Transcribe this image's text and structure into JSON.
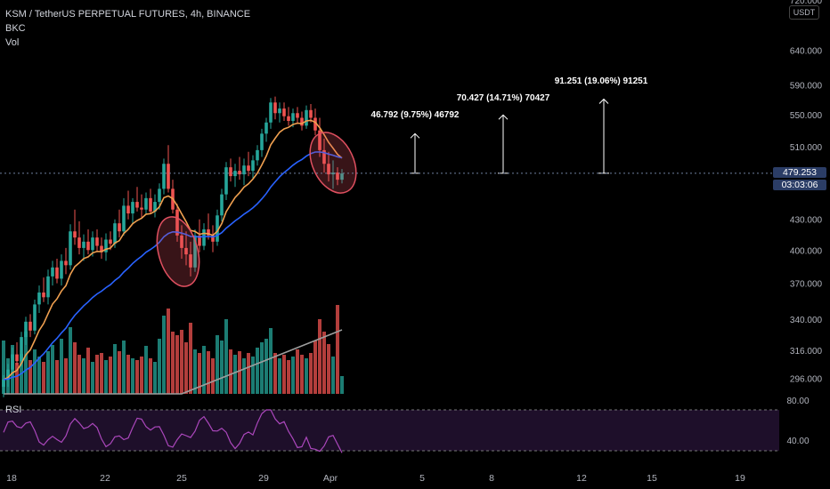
{
  "header": {
    "symbol_line": "KSM / TetherUS PERPETUAL FUTURES, 4h, BINANCE",
    "indicator_1": "BKC",
    "indicator_2": "Vol",
    "rsi_label": "RSI",
    "currency": "USDT"
  },
  "current_price": {
    "price": "479.253",
    "countdown": "03:03:06"
  },
  "colors": {
    "up": "#26a69a",
    "down": "#ef5350",
    "ema_short": "#f0a050",
    "ema_long": "#2962ff",
    "vol_ma": "#9e9e9e",
    "rsi": "#ab47bc",
    "rsi_band": "#1e0f2a",
    "ellipse": "#e05060",
    "badge": "#2b3d66"
  },
  "chart_data": {
    "type": "candlestick",
    "title": "KSM / TetherUS PERPETUAL FUTURES, 4h, BINANCE",
    "price_axis_ticks": [
      "720.000",
      "640.000",
      "590.000",
      "550.000",
      "510.000",
      "430.000",
      "400.000",
      "370.000",
      "340.000",
      "316.000",
      "296.000"
    ],
    "time_axis_ticks": [
      "18",
      "22",
      "25",
      "29",
      "Apr",
      "5",
      "8",
      "12",
      "15",
      "19"
    ],
    "rsi_axis_ticks": [
      "80.00",
      "40.00"
    ],
    "log_scale": true,
    "ohlc": [
      [
        290,
        298,
        283,
        295
      ],
      [
        295,
        306,
        290,
        302
      ],
      [
        302,
        318,
        298,
        313
      ],
      [
        313,
        322,
        305,
        308
      ],
      [
        308,
        330,
        304,
        326
      ],
      [
        326,
        342,
        320,
        338
      ],
      [
        338,
        344,
        326,
        331
      ],
      [
        331,
        356,
        328,
        352
      ],
      [
        352,
        368,
        345,
        362
      ],
      [
        362,
        375,
        354,
        358
      ],
      [
        358,
        382,
        352,
        376
      ],
      [
        376,
        390,
        368,
        384
      ],
      [
        384,
        392,
        370,
        374
      ],
      [
        374,
        396,
        368,
        390
      ],
      [
        390,
        402,
        378,
        386
      ],
      [
        386,
        425,
        382,
        418
      ],
      [
        418,
        440,
        405,
        412
      ],
      [
        412,
        428,
        396,
        402
      ],
      [
        402,
        415,
        390,
        408
      ],
      [
        408,
        420,
        396,
        400
      ],
      [
        400,
        418,
        394,
        412
      ],
      [
        412,
        420,
        398,
        404
      ],
      [
        404,
        412,
        392,
        398
      ],
      [
        398,
        416,
        390,
        410
      ],
      [
        410,
        418,
        400,
        406
      ],
      [
        406,
        430,
        402,
        426
      ],
      [
        426,
        440,
        412,
        418
      ],
      [
        418,
        452,
        414,
        444
      ],
      [
        444,
        460,
        430,
        436
      ],
      [
        436,
        452,
        426,
        448
      ],
      [
        448,
        464,
        438,
        442
      ],
      [
        442,
        456,
        432,
        440
      ],
      [
        440,
        458,
        436,
        452
      ],
      [
        452,
        462,
        436,
        438
      ],
      [
        438,
        456,
        432,
        448
      ],
      [
        448,
        468,
        440,
        462
      ],
      [
        462,
        496,
        456,
        490
      ],
      [
        490,
        512,
        458,
        462
      ],
      [
        462,
        472,
        436,
        440
      ],
      [
        440,
        446,
        408,
        414
      ],
      [
        414,
        424,
        392,
        402
      ],
      [
        402,
        418,
        386,
        396
      ],
      [
        396,
        408,
        376,
        384
      ],
      [
        384,
        420,
        380,
        414
      ],
      [
        414,
        430,
        398,
        404
      ],
      [
        404,
        426,
        400,
        420
      ],
      [
        420,
        436,
        410,
        414
      ],
      [
        414,
        424,
        398,
        408
      ],
      [
        408,
        440,
        404,
        434
      ],
      [
        434,
        462,
        428,
        456
      ],
      [
        456,
        492,
        450,
        486
      ],
      [
        486,
        496,
        470,
        476
      ],
      [
        476,
        490,
        464,
        482
      ],
      [
        482,
        498,
        472,
        478
      ],
      [
        478,
        496,
        466,
        488
      ],
      [
        488,
        504,
        476,
        482
      ],
      [
        482,
        500,
        472,
        494
      ],
      [
        494,
        512,
        488,
        506
      ],
      [
        506,
        532,
        498,
        526
      ],
      [
        526,
        546,
        516,
        540
      ],
      [
        540,
        572,
        532,
        566
      ],
      [
        566,
        574,
        544,
        552
      ],
      [
        552,
        566,
        540,
        558
      ],
      [
        558,
        566,
        542,
        548
      ],
      [
        548,
        560,
        536,
        542
      ],
      [
        542,
        558,
        534,
        552
      ],
      [
        552,
        560,
        538,
        546
      ],
      [
        546,
        554,
        530,
        536
      ],
      [
        536,
        562,
        532,
        556
      ],
      [
        556,
        564,
        540,
        546
      ],
      [
        546,
        558,
        524,
        530
      ],
      [
        530,
        546,
        498,
        506
      ],
      [
        506,
        520,
        480,
        490
      ],
      [
        490,
        504,
        470,
        478
      ],
      [
        478,
        494,
        462,
        480
      ],
      [
        480,
        486,
        466,
        472
      ],
      [
        472,
        484,
        468,
        479
      ]
    ],
    "volume": [
      60,
      40,
      55,
      35,
      45,
      70,
      38,
      50,
      42,
      36,
      48,
      55,
      38,
      62,
      40,
      75,
      58,
      44,
      40,
      52,
      36,
      44,
      46,
      38,
      42,
      56,
      48,
      60,
      44,
      40,
      38,
      42,
      54,
      40,
      36,
      62,
      88,
      96,
      70,
      66,
      72,
      58,
      80,
      50,
      46,
      54,
      48,
      40,
      66,
      60,
      84,
      50,
      44,
      48,
      40,
      46,
      42,
      52,
      58,
      62,
      74,
      46,
      40,
      44,
      38,
      42,
      50,
      44,
      40,
      46,
      60,
      84,
      70,
      56,
      42,
      100,
      20
    ],
    "annotations": [
      {
        "text": "46.792 (9.75%) 46792",
        "from_price": 479.253,
        "to_price": 526.045
      },
      {
        "text": "70.427 (14.71%) 70427",
        "from_price": 479.253,
        "to_price": 549.68
      },
      {
        "text": "91.251 (19.06%) 91251",
        "from_price": 479.253,
        "to_price": 570.504
      }
    ]
  }
}
